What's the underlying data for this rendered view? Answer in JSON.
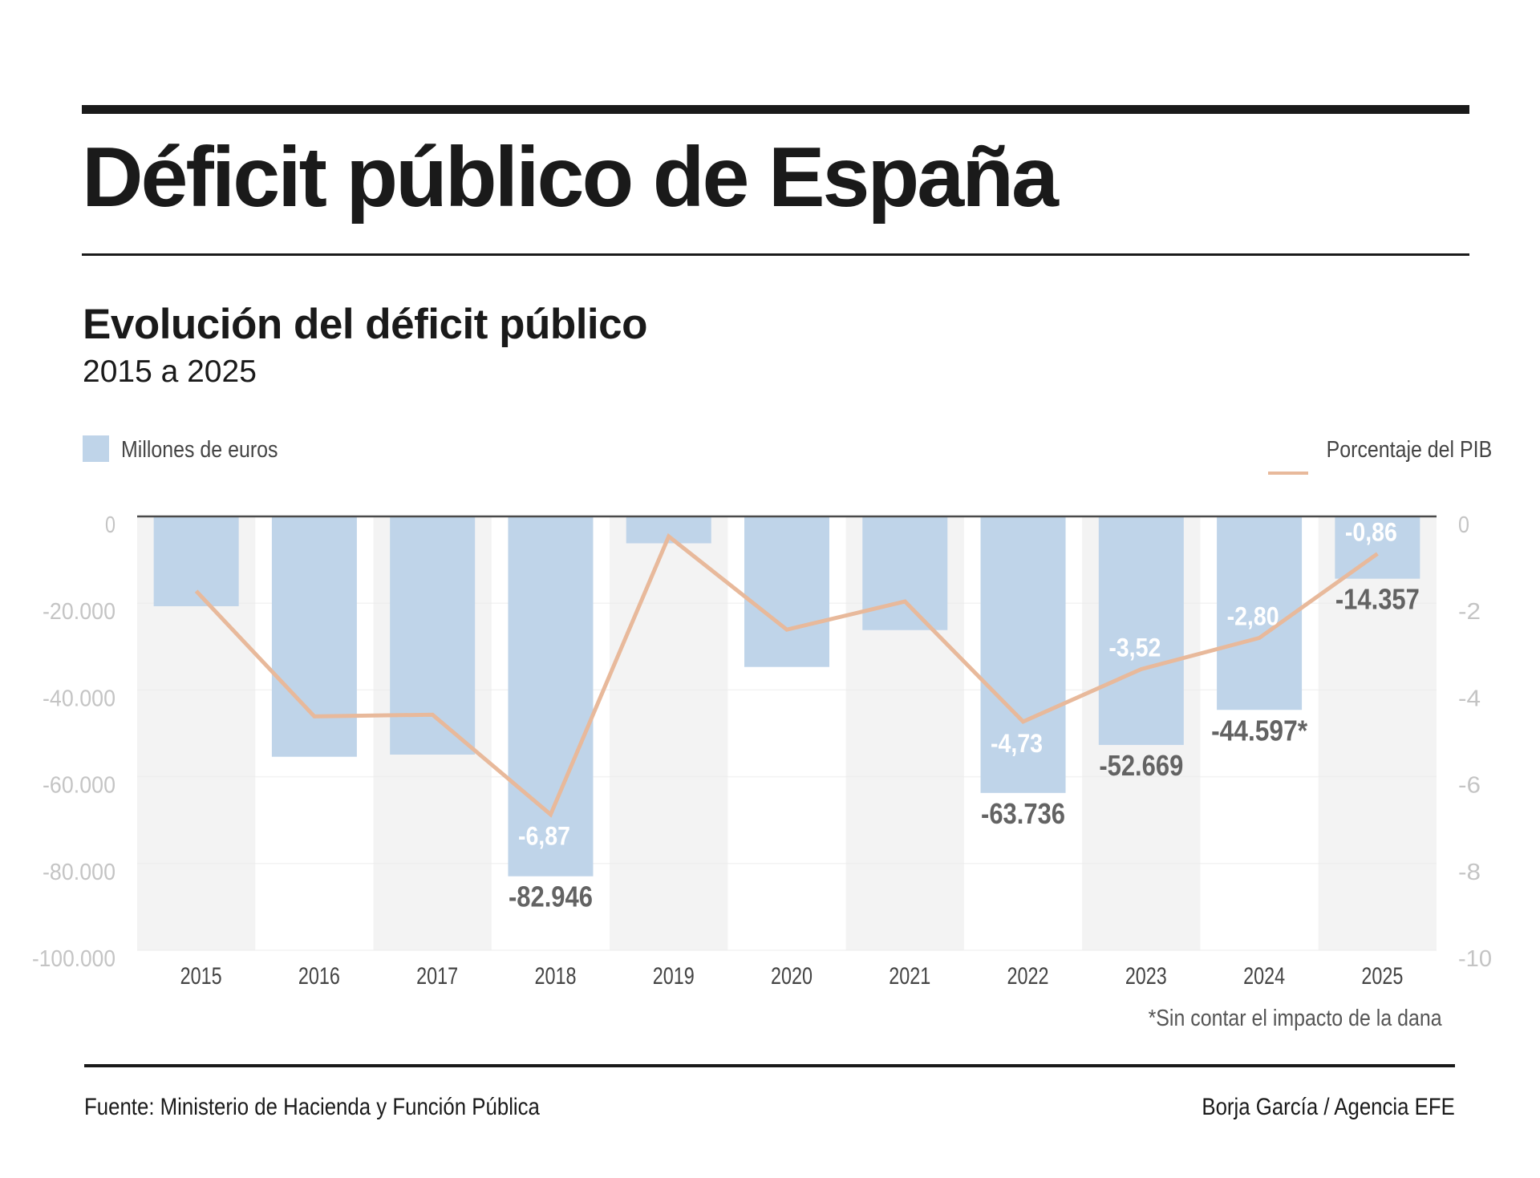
{
  "header": {
    "title": "Déficit público de España",
    "subtitle": "Evolución del déficit público",
    "period": "2015 a 2025"
  },
  "legend": {
    "bars_label": "Millones de euros",
    "line_label": "Porcentaje del PIB"
  },
  "footnote": "*Sin contar el impacto de la dana",
  "footer": {
    "source": "Fuente: Ministerio de Hacienda y Función Pública",
    "credit": "Borja García / Agencia EFE"
  },
  "colors": {
    "bar": "#bfd4e9",
    "line": "#e8b99b",
    "band": "#f3f3f3",
    "axis_line": "#4a4a4a"
  },
  "chart_data": {
    "type": "bar",
    "title": "Evolución del déficit público",
    "subtitle": "2015 a 2025",
    "categories": [
      "2015",
      "2016",
      "2017",
      "2018",
      "2019",
      "2020",
      "2021",
      "2022",
      "2023",
      "2024",
      "2025"
    ],
    "series": [
      {
        "name": "Millones de euros",
        "type": "bar",
        "axis": "left",
        "values": [
          -20700,
          -55400,
          -54900,
          -82946,
          -6200,
          -34700,
          -26200,
          -63736,
          -52669,
          -44597,
          -14357
        ],
        "labels": [
          null,
          null,
          null,
          "-82.946",
          null,
          null,
          null,
          "-63.736",
          "-52.669",
          "-44.597*",
          "-14.357"
        ]
      },
      {
        "name": "Porcentaje del PIB",
        "type": "line",
        "axis": "right",
        "values": [
          -1.72,
          -4.61,
          -4.57,
          -6.87,
          -0.46,
          -2.61,
          -1.96,
          -4.73,
          -3.52,
          -2.8,
          -0.86
        ],
        "labels": [
          null,
          null,
          null,
          "-6,87",
          null,
          null,
          null,
          "-4,73",
          "-3,52",
          "-2,80",
          "-0,86"
        ],
        "label_side": [
          null,
          null,
          null,
          "below",
          null,
          null,
          null,
          "below",
          "above",
          "above",
          "above"
        ]
      }
    ],
    "left_axis": {
      "ylim": [
        -100000,
        0
      ],
      "ticks": [
        0,
        -20000,
        -40000,
        -60000,
        -80000,
        -100000
      ],
      "tick_labels": [
        "0",
        "-20.000",
        "-40.000",
        "-60.000",
        "-80.000",
        "-100.000"
      ]
    },
    "right_axis": {
      "ylim": [
        -10,
        0
      ],
      "ticks": [
        0,
        -2,
        -4,
        -6,
        -8,
        -10
      ],
      "tick_labels": [
        "0",
        "-2",
        "-4",
        "-6",
        "-8",
        "-10"
      ]
    },
    "grid": true,
    "alternating_bands": true,
    "legend": [
      "top-left: Millones de euros",
      "top-right: Porcentaje del PIB"
    ],
    "footnote": "*Sin contar el impacto de la dana"
  }
}
